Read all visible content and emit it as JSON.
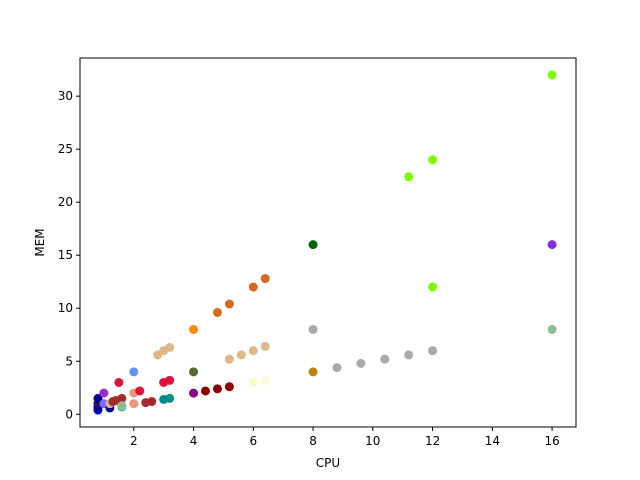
{
  "chart_data": {
    "type": "scatter",
    "title": "",
    "xlabel": "CPU",
    "ylabel": "MEM",
    "xlim": [
      0.2,
      16.8
    ],
    "ylim": [
      -1.2,
      33.6
    ],
    "xticks": [
      2,
      4,
      6,
      8,
      10,
      12,
      14,
      16
    ],
    "yticks": [
      0,
      5,
      10,
      15,
      20,
      25,
      30
    ],
    "grid": false,
    "legend": "none",
    "points": [
      {
        "x": 0.8,
        "y": 0.4,
        "color": "#0000cd"
      },
      {
        "x": 0.8,
        "y": 0.7,
        "color": "#00008b"
      },
      {
        "x": 0.8,
        "y": 1.0,
        "color": "#191970"
      },
      {
        "x": 0.8,
        "y": 1.5,
        "color": "#00008b"
      },
      {
        "x": 1.0,
        "y": 1.0,
        "color": "#7b68ee"
      },
      {
        "x": 1.0,
        "y": 2.0,
        "color": "#9932cc"
      },
      {
        "x": 1.2,
        "y": 0.6,
        "color": "#00008b"
      },
      {
        "x": 1.2,
        "y": 1.0,
        "color": "#d2b48c"
      },
      {
        "x": 1.3,
        "y": 1.2,
        "color": "#a52a2a"
      },
      {
        "x": 1.4,
        "y": 1.3,
        "color": "#a52a2a"
      },
      {
        "x": 1.5,
        "y": 3.0,
        "color": "#dc143c"
      },
      {
        "x": 1.6,
        "y": 1.5,
        "color": "#a52a2a"
      },
      {
        "x": 1.6,
        "y": 0.8,
        "color": "#5f9ea0"
      },
      {
        "x": 1.6,
        "y": 0.7,
        "color": "#20b2aa"
      },
      {
        "x": 1.6,
        "y": 0.8,
        "color": "#8fbc8f"
      },
      {
        "x": 2.0,
        "y": 4.0,
        "color": "#6495ed"
      },
      {
        "x": 2.0,
        "y": 1.0,
        "color": "#e9967a"
      },
      {
        "x": 2.0,
        "y": 2.0,
        "color": "#e9967a"
      },
      {
        "x": 2.2,
        "y": 2.2,
        "color": "#dc143c"
      },
      {
        "x": 2.4,
        "y": 1.1,
        "color": "#a52a2a"
      },
      {
        "x": 2.6,
        "y": 1.2,
        "color": "#a52a2a"
      },
      {
        "x": 2.8,
        "y": 5.6,
        "color": "#deb887"
      },
      {
        "x": 3.0,
        "y": 6.0,
        "color": "#deb887"
      },
      {
        "x": 3.0,
        "y": 3.0,
        "color": "#dc143c"
      },
      {
        "x": 3.0,
        "y": 1.4,
        "color": "#008b8b"
      },
      {
        "x": 3.2,
        "y": 6.3,
        "color": "#deb887"
      },
      {
        "x": 3.2,
        "y": 3.2,
        "color": "#dc143c"
      },
      {
        "x": 3.2,
        "y": 1.5,
        "color": "#008b8b"
      },
      {
        "x": 4.0,
        "y": 8.0,
        "color": "#ff8c00"
      },
      {
        "x": 4.0,
        "y": 4.0,
        "color": "#556b2f"
      },
      {
        "x": 4.0,
        "y": 2.0,
        "color": "#8b008b"
      },
      {
        "x": 4.4,
        "y": 2.2,
        "color": "#8b0000"
      },
      {
        "x": 4.8,
        "y": 9.6,
        "color": "#d2691e"
      },
      {
        "x": 4.8,
        "y": 2.4,
        "color": "#8b0000"
      },
      {
        "x": 5.2,
        "y": 10.4,
        "color": "#d2691e"
      },
      {
        "x": 5.2,
        "y": 5.2,
        "color": "#deb887"
      },
      {
        "x": 5.2,
        "y": 2.6,
        "color": "#8b0000"
      },
      {
        "x": 5.6,
        "y": 5.6,
        "color": "#deb887"
      },
      {
        "x": 6.0,
        "y": 12.0,
        "color": "#d2691e"
      },
      {
        "x": 6.0,
        "y": 6.0,
        "color": "#deb887"
      },
      {
        "x": 6.0,
        "y": 3.0,
        "color": "#fffacd"
      },
      {
        "x": 6.4,
        "y": 12.8,
        "color": "#d2691e"
      },
      {
        "x": 6.4,
        "y": 6.4,
        "color": "#deb887"
      },
      {
        "x": 6.4,
        "y": 3.2,
        "color": "#fff8dc"
      },
      {
        "x": 8.0,
        "y": 16.0,
        "color": "#006400"
      },
      {
        "x": 8.0,
        "y": 8.0,
        "color": "#a9a9a9"
      },
      {
        "x": 8.0,
        "y": 4.0,
        "color": "#b8860b"
      },
      {
        "x": 8.8,
        "y": 4.4,
        "color": "#a9a9a9"
      },
      {
        "x": 9.6,
        "y": 4.8,
        "color": "#a9a9a9"
      },
      {
        "x": 10.4,
        "y": 5.2,
        "color": "#a9a9a9"
      },
      {
        "x": 11.2,
        "y": 22.4,
        "color": "#7cfc00"
      },
      {
        "x": 11.2,
        "y": 5.6,
        "color": "#a9a9a9"
      },
      {
        "x": 12.0,
        "y": 24.0,
        "color": "#7cfc00"
      },
      {
        "x": 12.0,
        "y": 12.0,
        "color": "#7cfc00"
      },
      {
        "x": 12.0,
        "y": 6.0,
        "color": "#a9a9a9"
      },
      {
        "x": 16.0,
        "y": 32.0,
        "color": "#7cfc00"
      },
      {
        "x": 16.0,
        "y": 16.0,
        "color": "#8a2be2"
      },
      {
        "x": 16.0,
        "y": 8.0,
        "color": "#8fbc8f"
      }
    ]
  }
}
